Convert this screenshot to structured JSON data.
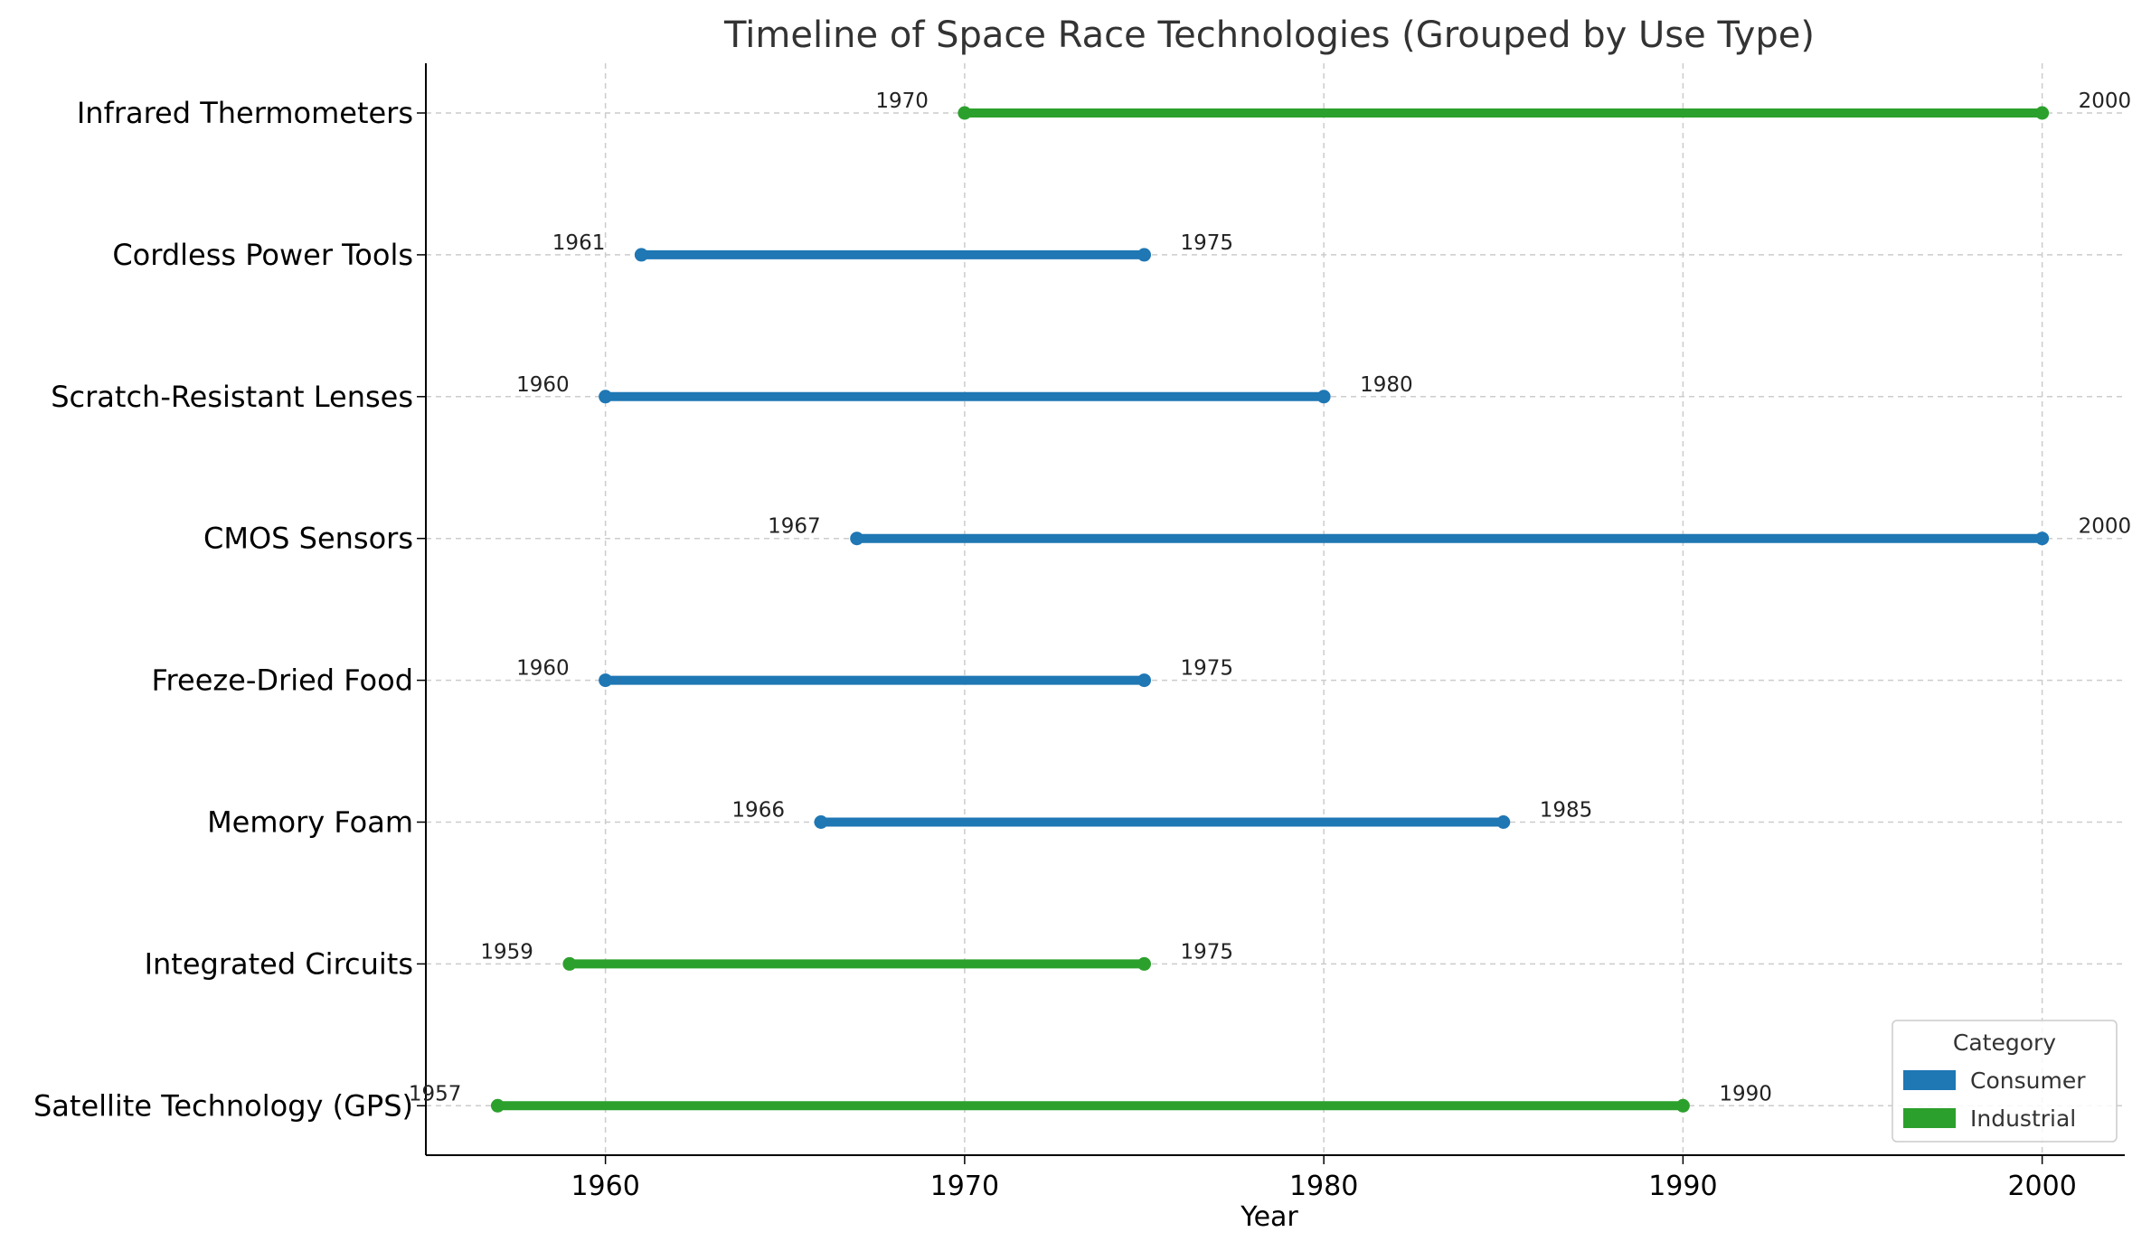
{
  "chart_data": {
    "type": "timeline",
    "title": "Timeline of Space Race Technologies (Grouped by Use Type)",
    "xlabel": "Year",
    "ylabel": "",
    "xlim": [
      1955,
      2002.3
    ],
    "xticks": [
      1960,
      1970,
      1980,
      1990,
      2000
    ],
    "grid": true,
    "legend": {
      "title": "Category",
      "position": "lower right",
      "entries": [
        {
          "name": "Consumer",
          "color": "#1f77b4"
        },
        {
          "name": "Industrial",
          "color": "#2ca02c"
        }
      ]
    },
    "items": [
      {
        "label": "Infrared Thermometers",
        "start": 1970,
        "end": 2000,
        "category": "Industrial"
      },
      {
        "label": "Cordless Power Tools",
        "start": 1961,
        "end": 1975,
        "category": "Consumer"
      },
      {
        "label": "Scratch-Resistant Lenses",
        "start": 1960,
        "end": 1980,
        "category": "Consumer"
      },
      {
        "label": "CMOS Sensors",
        "start": 1967,
        "end": 2000,
        "category": "Consumer"
      },
      {
        "label": "Freeze-Dried Food",
        "start": 1960,
        "end": 1975,
        "category": "Consumer"
      },
      {
        "label": "Memory Foam",
        "start": 1966,
        "end": 1985,
        "category": "Consumer"
      },
      {
        "label": "Integrated Circuits",
        "start": 1959,
        "end": 1975,
        "category": "Industrial"
      },
      {
        "label": "Satellite Technology (GPS)",
        "start": 1957,
        "end": 1990,
        "category": "Industrial"
      }
    ]
  }
}
